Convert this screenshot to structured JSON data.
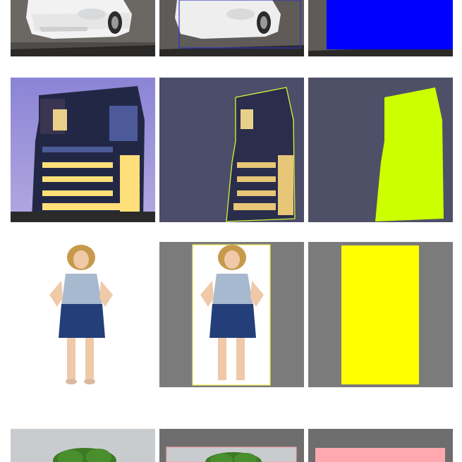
{
  "rows": [
    {
      "subject": "car",
      "mask_color": "#0000ff",
      "outline_color": "#2a2aa8"
    },
    {
      "subject": "building",
      "mask_color": "#ccff00",
      "outline_color": "#d6f53a"
    },
    {
      "subject": "woman",
      "mask_color": "#ffff00",
      "outline_color": "#e8e84a"
    },
    {
      "subject": "tree",
      "mask_color": "#ffa8b0",
      "outline_color": "#f2a0a8"
    }
  ]
}
